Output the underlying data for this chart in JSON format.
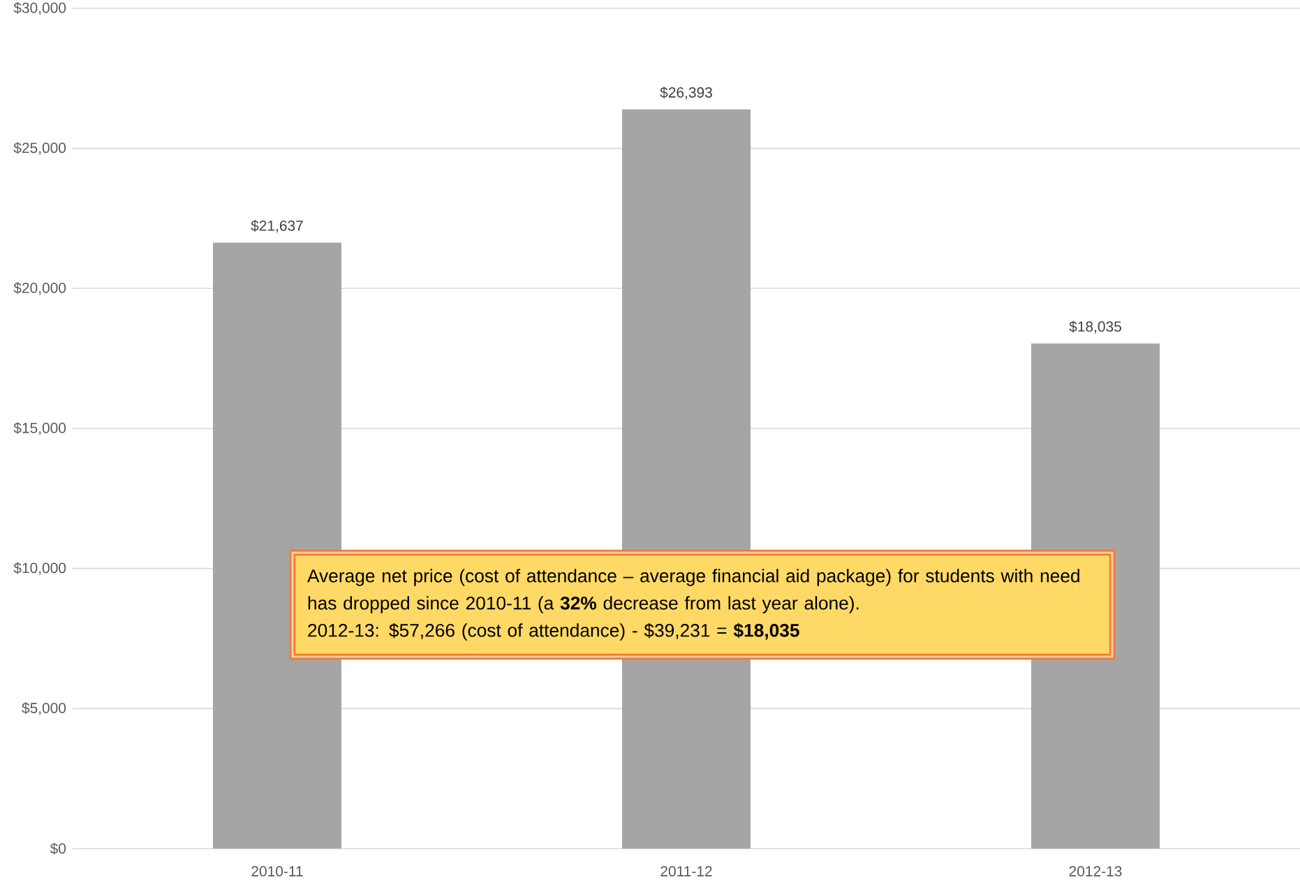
{
  "chart_data": {
    "type": "bar",
    "categories": [
      "2010-11",
      "2011-12",
      "2012-13"
    ],
    "values": [
      21637,
      26393,
      18035
    ],
    "color": "#a5a5a5",
    "value_labels": [
      "$21,637",
      "$26,393",
      "$18,035"
    ],
    "ylim": [
      0,
      30000
    ],
    "yticks": [
      {
        "value": 0,
        "label": "$0"
      },
      {
        "value": 5000,
        "label": "$5,000"
      },
      {
        "value": 10000,
        "label": "$10,000"
      },
      {
        "value": 15000,
        "label": "$15,000"
      },
      {
        "value": 20000,
        "label": "$20,000"
      },
      {
        "value": 25000,
        "label": "$25,000"
      },
      {
        "value": 30000,
        "label": "$30,000"
      }
    ],
    "grid": "y",
    "annotations": [
      "Average net price (cost of attendance – average financial aid package) for students with need has dropped since 2010-11 (a **32%** decrease from last year alone).",
      "2012-13: $57,266 (cost of attendance) - $39,231 = **$18,035**"
    ]
  }
}
